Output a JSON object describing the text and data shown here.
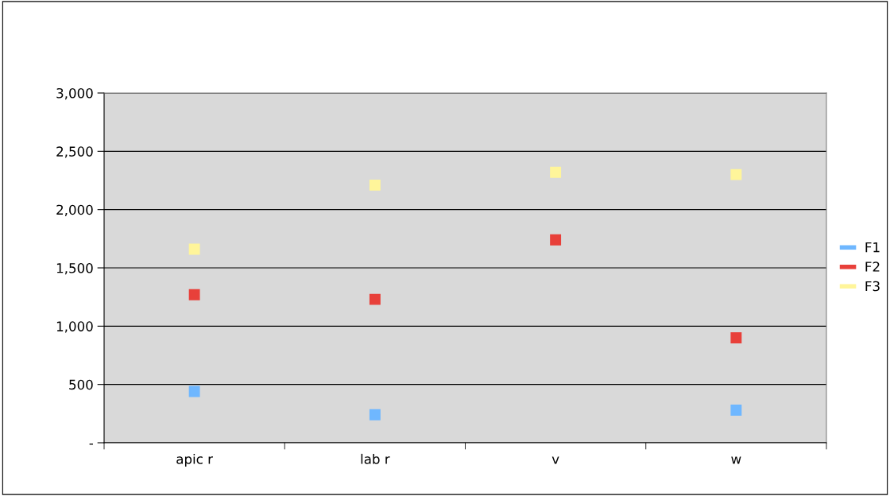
{
  "chart_data": {
    "type": "scatter",
    "categories": [
      "apic r",
      "lab r",
      "v",
      "w"
    ],
    "series": [
      {
        "name": "F1",
        "color": "#6fb7ff",
        "values": [
          440,
          240,
          null,
          280
        ]
      },
      {
        "name": "F2",
        "color": "#e8403a",
        "values": [
          1270,
          1230,
          1740,
          900
        ]
      },
      {
        "name": "F3",
        "color": "#fff59a",
        "values": [
          1660,
          2210,
          2320,
          2300
        ]
      }
    ],
    "ylim": [
      0,
      3000
    ],
    "yticks": [
      {
        "value": 0,
        "label": "-"
      },
      {
        "value": 500,
        "label": "500"
      },
      {
        "value": 1000,
        "label": "1,000"
      },
      {
        "value": 1500,
        "label": "1,500"
      },
      {
        "value": 2000,
        "label": "2,000"
      },
      {
        "value": 2500,
        "label": "2,500"
      },
      {
        "value": 3000,
        "label": "3,000"
      }
    ],
    "grid": "y",
    "legend": "right",
    "marker": "square"
  }
}
